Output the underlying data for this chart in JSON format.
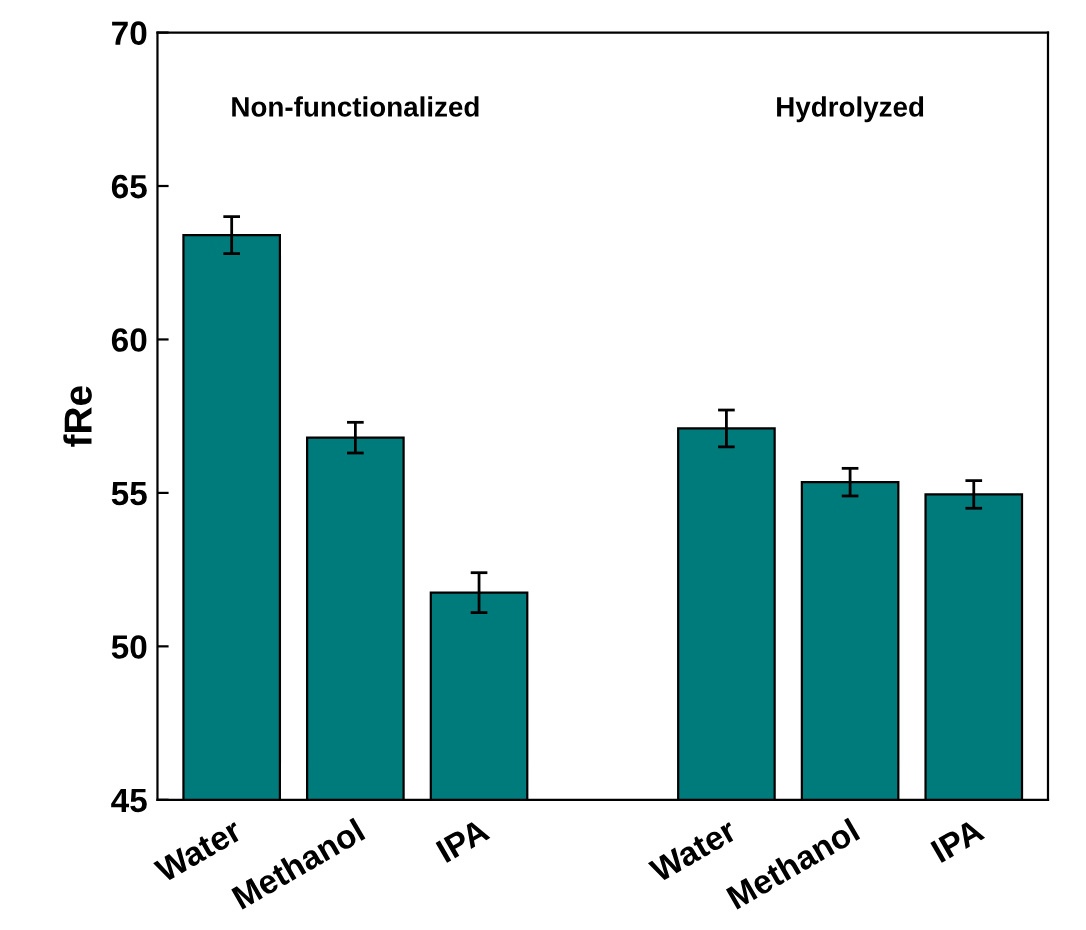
{
  "chart_data": {
    "type": "bar",
    "ylabel": "fRe",
    "categories": [
      "Water",
      "Methanol",
      "IPA",
      null,
      "Water",
      "Methanol",
      "IPA"
    ],
    "values": [
      63.4,
      56.8,
      51.75,
      null,
      57.1,
      55.35,
      54.95
    ],
    "errors": [
      0.6,
      0.5,
      0.65,
      null,
      0.6,
      0.45,
      0.45
    ],
    "color": "#007b7b",
    "ylim": [
      45,
      70
    ],
    "yticks": [
      45,
      50,
      55,
      60,
      65,
      70
    ],
    "annotations": [
      "Non-functionalized",
      "Hydrolyzed"
    ],
    "grid": false,
    "legend": false
  }
}
